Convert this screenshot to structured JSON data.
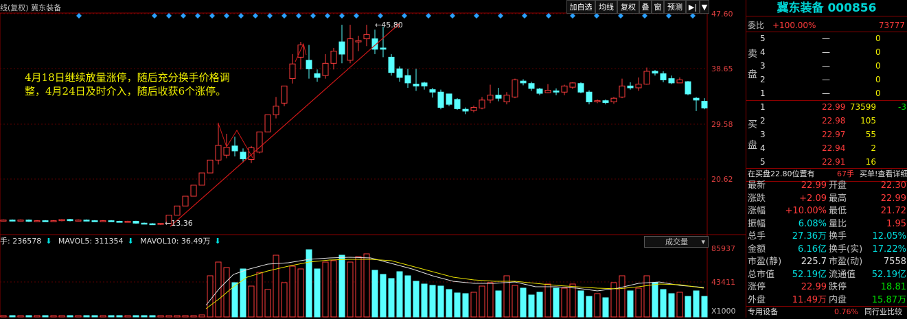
{
  "header": {
    "title": "线(复权) 冀东装备"
  },
  "toolbar": {
    "b1": "加自选",
    "b2": "均线",
    "b3": "复权",
    "b4": "叠",
    "b5": "窗",
    "b6": "预测",
    "b7": "▶|",
    "b8": "▼"
  },
  "price_axis": [
    "47.60",
    "38.65",
    "29.58",
    "20.62"
  ],
  "annotations": {
    "text": "4月18日继续放量涨停，随后充分换手价格调整，4月24日及时介入，随后收获6个涨停。",
    "high_label": "45.80",
    "low_label": "13.36"
  },
  "volume": {
    "label1": "手: 236578",
    "label2": "MAVOL5: 311354",
    "label3": "MAVOL10: 36.49万",
    "select": "成交量",
    "axis": [
      "85937",
      "43411",
      "X1000"
    ]
  },
  "stock": {
    "title": "冀东装备 000856",
    "commission": {
      "l": "委比",
      "ratio": "+100.00%",
      "diff": "73777"
    },
    "sell_label": "卖盘",
    "sells": [
      [
        "5",
        "—",
        "0"
      ],
      [
        "4",
        "—",
        "0"
      ],
      [
        "3",
        "—",
        "0"
      ],
      [
        "2",
        "—",
        "0"
      ],
      [
        "1",
        "—",
        "0"
      ]
    ],
    "buy_label": "买盘",
    "buys": [
      [
        "1",
        "22.99",
        "73599",
        "-3"
      ],
      [
        "2",
        "22.98",
        "105",
        ""
      ],
      [
        "3",
        "22.97",
        "55",
        ""
      ],
      [
        "4",
        "22.94",
        "2",
        ""
      ],
      [
        "5",
        "22.91",
        "16",
        ""
      ]
    ],
    "info_left": "在买盘22.80位置有",
    "info_mid": "67手",
    "info_right": "买单!查看详细",
    "quote": [
      [
        "最新",
        "22.99",
        "开盘",
        "22.30"
      ],
      [
        "涨跌",
        "+2.09",
        "最高",
        "22.99"
      ],
      [
        "涨幅",
        "+10.00%",
        "最低",
        "21.72"
      ],
      [
        "振幅",
        "6.08%",
        "量比",
        "1.95"
      ],
      [
        "总手",
        "27.36万",
        "换手",
        "12.05%"
      ],
      [
        "金额",
        "6.16亿",
        "换手(实)",
        "17.22%"
      ],
      [
        "市盈(静)",
        "225.7",
        "市盈(动)",
        "7558"
      ],
      [
        "总市值",
        "52.19亿",
        "流通值",
        "52.19亿"
      ],
      [
        "涨停",
        "22.99",
        "跌停",
        "18.81"
      ],
      [
        "外盘",
        "11.49万",
        "内盘",
        "15.87万"
      ]
    ],
    "footer_l": "专用设备",
    "footer_m": "0.76%",
    "footer_r": "同行业比较"
  }
}
